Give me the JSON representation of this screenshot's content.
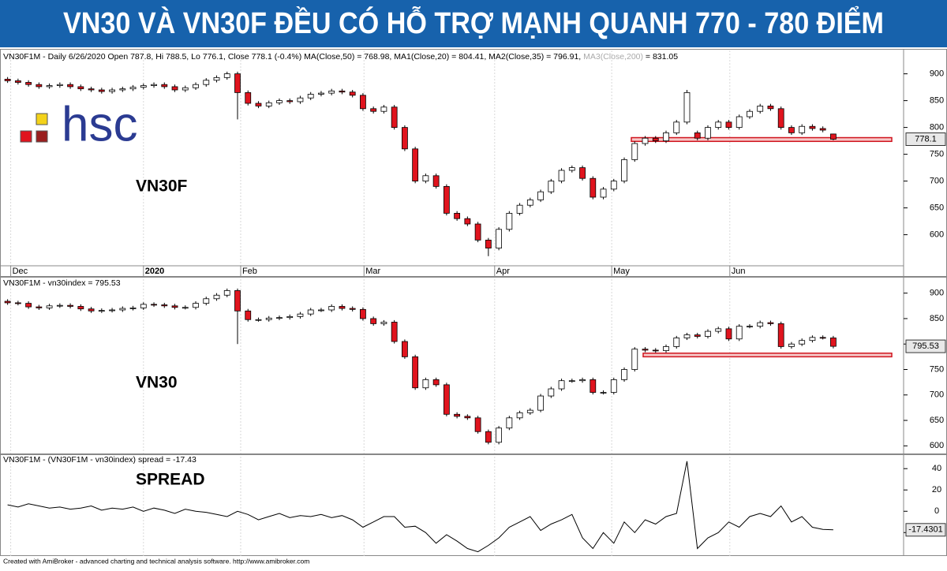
{
  "title": "VN30 VÀ VN30F ĐỀU CÓ HỖ TRỢ MẠNH QUANH 770 - 780 ĐIỂM",
  "logo": "hsc",
  "footer": "Created with AmiBroker - advanced charting and technical analysis software. http://www.amibroker.com",
  "chart_data": [
    {
      "type": "candlestick",
      "header": "VN30F1M - Daily 6/26/2020 Open 787.8, Hi 788.5, Lo 776.1, Close 778.1 (-0.4%) MA(Close,50) = 768.98, MA1(Close,20) = 804.41, MA2(Close,35) = 796.91,",
      "header_muted": "MA3(Close,200)",
      "header_end": "= 831.05",
      "label": "VN30F",
      "last_value_label": "778.1",
      "up_color": "#ffffff",
      "down_color": "#e0141e",
      "support_band": [
        774,
        781
      ],
      "xlim": [
        -0.5,
        85.5
      ],
      "xticks": [
        {
          "value": 0.3,
          "label": "Dec"
        },
        {
          "value": 13,
          "label": "2020"
        },
        {
          "value": 22.3,
          "label": "Feb"
        },
        {
          "value": 34.1,
          "label": "Mar"
        },
        {
          "value": 46.6,
          "label": "Apr"
        },
        {
          "value": 57.8,
          "label": "May"
        },
        {
          "value": 69.1,
          "label": "Jun"
        }
      ],
      "ylim": [
        545,
        920
      ],
      "yticks": [
        600,
        650,
        700,
        750,
        800,
        850,
        900
      ],
      "series": [
        {
          "name": "VN30F1M",
          "open": [
            890,
            887,
            884,
            880,
            876,
            878,
            880,
            876,
            872,
            870,
            867,
            870,
            872,
            875,
            878,
            880,
            876,
            870,
            874,
            880,
            888,
            893,
            900,
            865,
            845,
            840,
            846,
            850,
            848,
            855,
            862,
            864,
            868,
            866,
            860,
            835,
            830,
            838,
            800,
            760,
            700,
            710,
            690,
            640,
            630,
            620,
            590,
            575,
            610,
            640,
            655,
            665,
            680,
            700,
            720,
            725,
            705,
            670,
            685,
            700,
            740,
            770,
            780,
            775,
            790,
            810,
            790,
            780,
            800,
            810,
            800,
            820,
            830,
            840,
            835,
            800,
            790,
            802,
            798,
            787.8
          ],
          "high": [
            894,
            891,
            888,
            884,
            882,
            884,
            884,
            880,
            876,
            874,
            874,
            876,
            879,
            882,
            884,
            884,
            880,
            878,
            884,
            892,
            897,
            904,
            904,
            869,
            849,
            850,
            854,
            854,
            859,
            866,
            868,
            872,
            872,
            870,
            864,
            839,
            842,
            842,
            804,
            764,
            714,
            714,
            694,
            644,
            634,
            624,
            594,
            614,
            644,
            659,
            669,
            684,
            704,
            724,
            729,
            729,
            709,
            689,
            704,
            744,
            774,
            784,
            784,
            794,
            814,
            870,
            794,
            804,
            814,
            814,
            824,
            834,
            844,
            844,
            839,
            804,
            806,
            806,
            802,
            788.5
          ],
          "low": [
            883,
            880,
            876,
            872,
            872,
            874,
            872,
            868,
            866,
            863,
            863,
            866,
            868,
            871,
            874,
            872,
            866,
            866,
            870,
            876,
            884,
            889,
            815,
            841,
            836,
            836,
            842,
            844,
            844,
            851,
            858,
            860,
            862,
            856,
            831,
            826,
            826,
            796,
            756,
            696,
            696,
            686,
            636,
            626,
            616,
            586,
            560,
            571,
            606,
            636,
            651,
            661,
            676,
            696,
            716,
            701,
            666,
            666,
            681,
            696,
            736,
            766,
            771,
            771,
            786,
            806,
            776,
            776,
            796,
            796,
            796,
            816,
            826,
            831,
            796,
            786,
            786,
            794,
            791,
            776.1
          ],
          "close": [
            887,
            884,
            880,
            876,
            878,
            880,
            876,
            872,
            870,
            867,
            870,
            872,
            875,
            878,
            880,
            876,
            870,
            874,
            880,
            888,
            893,
            900,
            865,
            845,
            840,
            846,
            850,
            848,
            855,
            862,
            864,
            868,
            866,
            860,
            835,
            830,
            838,
            800,
            760,
            700,
            710,
            690,
            640,
            630,
            620,
            590,
            575,
            610,
            640,
            655,
            665,
            680,
            700,
            720,
            725,
            705,
            670,
            685,
            700,
            740,
            770,
            780,
            775,
            790,
            810,
            865,
            780,
            800,
            810,
            800,
            820,
            830,
            840,
            835,
            800,
            790,
            802,
            798,
            795,
            778.1
          ]
        }
      ]
    },
    {
      "type": "candlestick",
      "header": "VN30F1M - vn30index = 795.53",
      "label": "VN30",
      "last_value_label": "795.53",
      "up_color": "#ffffff",
      "down_color": "#e0141e",
      "support_band": [
        775,
        782
      ],
      "xlim": [
        -0.5,
        85.5
      ],
      "ylim": [
        585,
        915
      ],
      "yticks": [
        600,
        650,
        700,
        750,
        800,
        850,
        900
      ],
      "series": [
        {
          "name": "vn30index",
          "open": [
            884,
            881,
            880,
            873,
            871,
            875,
            876,
            874,
            869,
            865,
            866,
            867,
            870,
            871,
            878,
            877,
            875,
            872,
            872,
            880,
            889,
            896,
            905,
            865,
            848,
            848,
            851,
            852,
            854,
            859,
            867,
            867,
            874,
            870,
            868,
            850,
            840,
            843,
            805,
            775,
            714,
            730,
            720,
            662,
            658,
            655,
            628,
            607,
            635,
            655,
            665,
            670,
            698,
            712,
            728,
            728,
            730,
            705,
            705,
            730,
            750,
            790,
            788,
            787,
            795,
            812,
            818,
            815,
            825,
            830,
            810,
            835,
            835,
            842,
            840,
            795,
            800,
            807,
            813,
            812
          ],
          "high": [
            888,
            885,
            884,
            877,
            879,
            880,
            880,
            878,
            873,
            870,
            871,
            874,
            875,
            882,
            882,
            881,
            879,
            876,
            884,
            893,
            900,
            909,
            909,
            869,
            852,
            855,
            856,
            858,
            863,
            871,
            871,
            878,
            878,
            874,
            872,
            854,
            847,
            847,
            809,
            779,
            734,
            734,
            724,
            666,
            662,
            659,
            632,
            639,
            659,
            669,
            674,
            702,
            716,
            732,
            732,
            734,
            734,
            709,
            734,
            754,
            794,
            794,
            792,
            799,
            816,
            822,
            822,
            829,
            834,
            834,
            839,
            839,
            846,
            846,
            844,
            804,
            811,
            817,
            817,
            816
          ],
          "low": [
            877,
            876,
            869,
            867,
            867,
            871,
            870,
            865,
            861,
            861,
            862,
            863,
            866,
            867,
            873,
            871,
            868,
            868,
            868,
            876,
            885,
            892,
            800,
            844,
            844,
            844,
            847,
            848,
            850,
            855,
            863,
            863,
            866,
            864,
            846,
            836,
            836,
            801,
            771,
            710,
            710,
            716,
            658,
            654,
            651,
            624,
            603,
            603,
            631,
            651,
            661,
            666,
            694,
            708,
            724,
            724,
            701,
            701,
            701,
            726,
            746,
            784,
            783,
            783,
            791,
            808,
            811,
            811,
            821,
            806,
            806,
            831,
            831,
            836,
            791,
            791,
            796,
            803,
            809,
            791.53
          ],
          "close": [
            881,
            880,
            873,
            871,
            875,
            876,
            874,
            869,
            865,
            866,
            867,
            870,
            871,
            878,
            877,
            875,
            872,
            872,
            880,
            889,
            896,
            905,
            865,
            848,
            848,
            851,
            852,
            854,
            859,
            867,
            867,
            874,
            870,
            868,
            850,
            840,
            843,
            805,
            775,
            714,
            730,
            720,
            662,
            658,
            655,
            628,
            607,
            635,
            655,
            665,
            670,
            698,
            712,
            728,
            728,
            730,
            705,
            705,
            730,
            750,
            790,
            788,
            787,
            795,
            812,
            818,
            815,
            825,
            830,
            810,
            835,
            835,
            842,
            840,
            795,
            800,
            807,
            813,
            812,
            795.53
          ]
        }
      ]
    },
    {
      "type": "line",
      "header": "VN30F1M - (VN30F1M - vn30index) spread = -17.43",
      "label": "SPREAD",
      "last_value_label": "-17.4301",
      "color": "#000000",
      "xlim": [
        -0.5,
        85.5
      ],
      "ylim": [
        -42,
        52
      ],
      "yticks": [
        -20,
        0,
        20,
        40
      ],
      "values": [
        6,
        4,
        7,
        5,
        3,
        4,
        2,
        3,
        5,
        1,
        3,
        2,
        4,
        0,
        3,
        1,
        -2,
        2,
        0,
        -1,
        -3,
        -5,
        0,
        -3,
        -8,
        -5,
        -2,
        -6,
        -4,
        -5,
        -3,
        -6,
        -4,
        -8,
        -15,
        -10,
        -5,
        -5,
        -15,
        -14,
        -20,
        -30,
        -22,
        -28,
        -35,
        -38,
        -32,
        -25,
        -15,
        -10,
        -5,
        -18,
        -12,
        -8,
        -3,
        -25,
        -35,
        -20,
        -30,
        -10,
        -20,
        -8,
        -12,
        -5,
        -2,
        47,
        -35,
        -25,
        -20,
        -10,
        -15,
        -5,
        -2,
        -5,
        5,
        -10,
        -5,
        -15,
        -17,
        -17.43
      ]
    }
  ]
}
